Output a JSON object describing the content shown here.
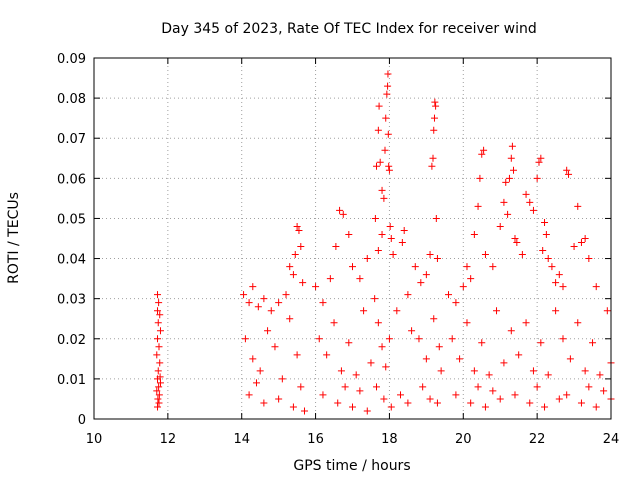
{
  "chart_data": {
    "type": "scatter",
    "title": "Day 345 of 2023, Rate Of TEC Index for receiver wind",
    "xlabel": "GPS time / hours",
    "ylabel": "ROTI / TECUs",
    "xlim": [
      10,
      24
    ],
    "ylim": [
      0,
      0.09
    ],
    "x_ticks": [
      "10",
      "12",
      "14",
      "16",
      "18",
      "20",
      "22",
      "24"
    ],
    "y_ticks": [
      "0",
      "0.01",
      "0.02",
      "0.03",
      "0.04",
      "0.05",
      "0.06",
      "0.07",
      "0.08",
      "0.09"
    ],
    "grid": true,
    "marker": "+",
    "color": "#ff0000",
    "series": [
      {
        "points": [
          [
            11.72,
            0.031
          ],
          [
            11.75,
            0.029
          ],
          [
            11.72,
            0.027
          ],
          [
            11.78,
            0.026
          ],
          [
            11.74,
            0.024
          ],
          [
            11.8,
            0.022
          ],
          [
            11.72,
            0.02
          ],
          [
            11.76,
            0.018
          ],
          [
            11.7,
            0.016
          ],
          [
            11.78,
            0.014
          ],
          [
            11.74,
            0.012
          ],
          [
            11.72,
            0.01
          ],
          [
            11.8,
            0.009
          ],
          [
            11.75,
            0.008
          ],
          [
            11.7,
            0.007
          ],
          [
            11.77,
            0.006
          ],
          [
            11.73,
            0.005
          ],
          [
            11.76,
            0.004
          ],
          [
            11.72,
            0.003
          ],
          [
            11.79,
            0.0105
          ],
          [
            14.05,
            0.031
          ],
          [
            14.2,
            0.029
          ],
          [
            14.3,
            0.033
          ],
          [
            14.45,
            0.028
          ],
          [
            14.6,
            0.03
          ],
          [
            14.8,
            0.027
          ],
          [
            15.0,
            0.029
          ],
          [
            15.2,
            0.031
          ],
          [
            15.3,
            0.038
          ],
          [
            15.4,
            0.036
          ],
          [
            15.45,
            0.041
          ],
          [
            15.5,
            0.048
          ],
          [
            15.55,
            0.047
          ],
          [
            15.6,
            0.043
          ],
          [
            15.65,
            0.034
          ],
          [
            14.1,
            0.02
          ],
          [
            14.3,
            0.015
          ],
          [
            14.5,
            0.012
          ],
          [
            14.7,
            0.022
          ],
          [
            14.9,
            0.018
          ],
          [
            15.1,
            0.01
          ],
          [
            15.3,
            0.025
          ],
          [
            15.5,
            0.016
          ],
          [
            15.6,
            0.008
          ],
          [
            14.2,
            0.006
          ],
          [
            14.6,
            0.004
          ],
          [
            15.0,
            0.005
          ],
          [
            15.4,
            0.003
          ],
          [
            15.7,
            0.002
          ],
          [
            14.4,
            0.009
          ],
          [
            16.0,
            0.033
          ],
          [
            16.2,
            0.029
          ],
          [
            16.4,
            0.035
          ],
          [
            16.55,
            0.043
          ],
          [
            16.65,
            0.052
          ],
          [
            16.75,
            0.051
          ],
          [
            16.9,
            0.046
          ],
          [
            17.0,
            0.038
          ],
          [
            17.2,
            0.035
          ],
          [
            17.4,
            0.04
          ],
          [
            16.1,
            0.02
          ],
          [
            16.3,
            0.016
          ],
          [
            16.5,
            0.024
          ],
          [
            16.7,
            0.012
          ],
          [
            16.9,
            0.019
          ],
          [
            17.1,
            0.011
          ],
          [
            17.3,
            0.027
          ],
          [
            17.5,
            0.014
          ],
          [
            16.2,
            0.006
          ],
          [
            16.6,
            0.004
          ],
          [
            17.0,
            0.003
          ],
          [
            17.4,
            0.002
          ],
          [
            16.8,
            0.008
          ],
          [
            17.2,
            0.007
          ],
          [
            17.62,
            0.05
          ],
          [
            17.65,
            0.063
          ],
          [
            17.7,
            0.072
          ],
          [
            17.72,
            0.078
          ],
          [
            17.75,
            0.064
          ],
          [
            17.8,
            0.057
          ],
          [
            17.85,
            0.055
          ],
          [
            17.88,
            0.067
          ],
          [
            17.9,
            0.075
          ],
          [
            17.93,
            0.081
          ],
          [
            17.95,
            0.083
          ],
          [
            17.96,
            0.086
          ],
          [
            17.97,
            0.071
          ],
          [
            17.98,
            0.063
          ],
          [
            18.0,
            0.062
          ],
          [
            18.02,
            0.048
          ],
          [
            18.05,
            0.045
          ],
          [
            18.1,
            0.041
          ],
          [
            17.7,
            0.042
          ],
          [
            17.8,
            0.046
          ],
          [
            17.6,
            0.03
          ],
          [
            17.7,
            0.024
          ],
          [
            17.8,
            0.018
          ],
          [
            17.9,
            0.013
          ],
          [
            18.0,
            0.02
          ],
          [
            18.2,
            0.027
          ],
          [
            18.35,
            0.044
          ],
          [
            18.4,
            0.047
          ],
          [
            18.5,
            0.031
          ],
          [
            18.6,
            0.022
          ],
          [
            17.65,
            0.008
          ],
          [
            17.85,
            0.005
          ],
          [
            18.05,
            0.003
          ],
          [
            18.3,
            0.006
          ],
          [
            18.5,
            0.004
          ],
          [
            18.7,
            0.038
          ],
          [
            18.85,
            0.034
          ],
          [
            19.0,
            0.036
          ],
          [
            19.1,
            0.041
          ],
          [
            19.15,
            0.063
          ],
          [
            19.18,
            0.065
          ],
          [
            19.2,
            0.072
          ],
          [
            19.22,
            0.075
          ],
          [
            19.23,
            0.079
          ],
          [
            19.25,
            0.078
          ],
          [
            19.27,
            0.05
          ],
          [
            19.3,
            0.04
          ],
          [
            18.8,
            0.02
          ],
          [
            19.0,
            0.015
          ],
          [
            19.2,
            0.025
          ],
          [
            19.35,
            0.018
          ],
          [
            19.4,
            0.012
          ],
          [
            18.9,
            0.008
          ],
          [
            19.1,
            0.005
          ],
          [
            19.3,
            0.004
          ],
          [
            19.6,
            0.031
          ],
          [
            19.8,
            0.029
          ],
          [
            20.0,
            0.033
          ],
          [
            20.1,
            0.038
          ],
          [
            20.2,
            0.035
          ],
          [
            20.3,
            0.046
          ],
          [
            20.4,
            0.053
          ],
          [
            20.45,
            0.06
          ],
          [
            20.5,
            0.066
          ],
          [
            20.55,
            0.067
          ],
          [
            20.6,
            0.041
          ],
          [
            20.8,
            0.038
          ],
          [
            21.0,
            0.048
          ],
          [
            21.1,
            0.054
          ],
          [
            21.15,
            0.059
          ],
          [
            19.7,
            0.02
          ],
          [
            19.9,
            0.015
          ],
          [
            20.1,
            0.024
          ],
          [
            20.3,
            0.012
          ],
          [
            20.5,
            0.019
          ],
          [
            20.7,
            0.011
          ],
          [
            20.9,
            0.027
          ],
          [
            21.1,
            0.014
          ],
          [
            19.8,
            0.006
          ],
          [
            20.2,
            0.004
          ],
          [
            20.6,
            0.003
          ],
          [
            21.0,
            0.005
          ],
          [
            20.4,
            0.008
          ],
          [
            20.8,
            0.007
          ],
          [
            21.2,
            0.051
          ],
          [
            21.25,
            0.06
          ],
          [
            21.3,
            0.065
          ],
          [
            21.33,
            0.068
          ],
          [
            21.36,
            0.062
          ],
          [
            21.4,
            0.045
          ],
          [
            21.45,
            0.044
          ],
          [
            21.6,
            0.041
          ],
          [
            21.7,
            0.056
          ],
          [
            21.8,
            0.054
          ],
          [
            21.9,
            0.052
          ],
          [
            22.0,
            0.06
          ],
          [
            22.05,
            0.064
          ],
          [
            22.1,
            0.065
          ],
          [
            22.15,
            0.042
          ],
          [
            22.2,
            0.049
          ],
          [
            22.25,
            0.046
          ],
          [
            22.3,
            0.04
          ],
          [
            22.4,
            0.038
          ],
          [
            22.5,
            0.034
          ],
          [
            21.3,
            0.022
          ],
          [
            21.5,
            0.016
          ],
          [
            21.7,
            0.024
          ],
          [
            21.9,
            0.012
          ],
          [
            22.1,
            0.019
          ],
          [
            22.3,
            0.011
          ],
          [
            22.5,
            0.027
          ],
          [
            21.4,
            0.006
          ],
          [
            21.8,
            0.004
          ],
          [
            22.2,
            0.003
          ],
          [
            22.6,
            0.005
          ],
          [
            22.0,
            0.008
          ],
          [
            22.6,
            0.036
          ],
          [
            22.7,
            0.033
          ],
          [
            22.8,
            0.062
          ],
          [
            22.85,
            0.061
          ],
          [
            23.0,
            0.043
          ],
          [
            23.1,
            0.053
          ],
          [
            23.2,
            0.044
          ],
          [
            23.3,
            0.045
          ],
          [
            23.4,
            0.04
          ],
          [
            23.6,
            0.033
          ],
          [
            22.7,
            0.02
          ],
          [
            22.9,
            0.015
          ],
          [
            23.1,
            0.024
          ],
          [
            23.3,
            0.012
          ],
          [
            23.5,
            0.019
          ],
          [
            23.7,
            0.011
          ],
          [
            23.9,
            0.027
          ],
          [
            22.8,
            0.006
          ],
          [
            23.2,
            0.004
          ],
          [
            23.6,
            0.003
          ],
          [
            24.0,
            0.005
          ],
          [
            23.4,
            0.008
          ],
          [
            23.8,
            0.007
          ],
          [
            24.0,
            0.014
          ]
        ]
      }
    ]
  }
}
